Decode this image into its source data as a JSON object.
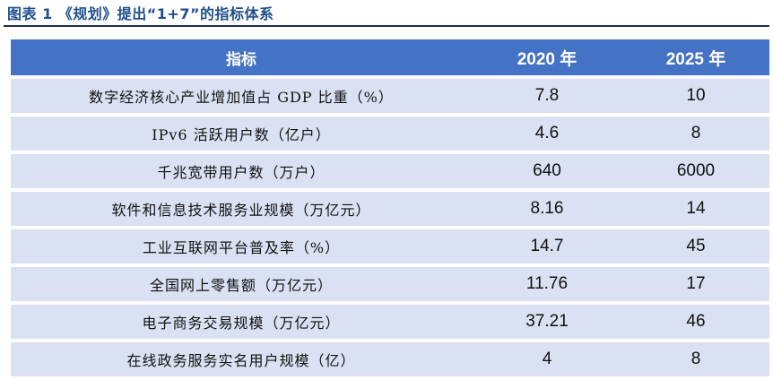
{
  "caption": "图表 1 《规划》提出“1+7”的指标体系",
  "table": {
    "headers": [
      "指标",
      "2020 年",
      "2025 年"
    ],
    "rows": [
      {
        "indicator": "数字经济核心产业增加值占 GDP 比重（%）",
        "y2020": "7.8",
        "y2025": "10"
      },
      {
        "indicator": "IPv6 活跃用户数（亿户）",
        "y2020": "4.6",
        "y2025": "8"
      },
      {
        "indicator": "千兆宽带用户数（万户）",
        "y2020": "640",
        "y2025": "6000"
      },
      {
        "indicator": "软件和信息技术服务业规模（万亿元）",
        "y2020": "8.16",
        "y2025": "14"
      },
      {
        "indicator": "工业互联网平台普及率（%）",
        "y2020": "14.7",
        "y2025": "45"
      },
      {
        "indicator": "全国网上零售额（万亿元）",
        "y2020": "11.76",
        "y2025": "17"
      },
      {
        "indicator": "电子商务交易规模（万亿元）",
        "y2020": "37.21",
        "y2025": "46"
      },
      {
        "indicator": "在线政务服务实名用户规模（亿）",
        "y2020": "4",
        "y2025": "8"
      }
    ]
  }
}
